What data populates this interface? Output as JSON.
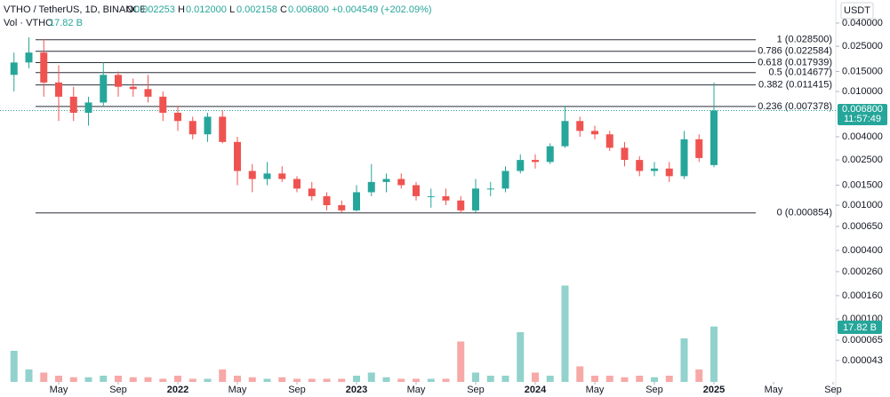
{
  "header": {
    "symbol": "VTHO / TetherUS, 1D, BINANCE",
    "o_label": "O",
    "o": "0.002253",
    "h_label": "H",
    "h": "0.012000",
    "l_label": "L",
    "l": "0.002158",
    "c_label": "C",
    "c": "0.006800",
    "change": "+0.004549 (+202.09%)",
    "vol_label": "Vol · VTHO",
    "vol": "17.82 B",
    "currency": "USDT",
    "last_price": "0.006800",
    "countdown": "11:57:49",
    "last_volume": "17.82 B"
  },
  "chart_data": {
    "type": "candlestick",
    "log_scale": true,
    "up_color": "#26a69a",
    "down_color": "#ef5350",
    "x": [
      "2021-02",
      "2021-03",
      "2021-04",
      "2021-05",
      "2021-06",
      "2021-07",
      "2021-08",
      "2021-09",
      "2021-10",
      "2021-11",
      "2021-12",
      "2022-01",
      "2022-02",
      "2022-03",
      "2022-04",
      "2022-05",
      "2022-06",
      "2022-07",
      "2022-08",
      "2022-09",
      "2022-10",
      "2022-11",
      "2022-12",
      "2023-01",
      "2023-02",
      "2023-03",
      "2023-04",
      "2023-05",
      "2023-06",
      "2023-07",
      "2023-08",
      "2023-09",
      "2023-10",
      "2023-11",
      "2023-12",
      "2024-01",
      "2024-02",
      "2024-03",
      "2024-04",
      "2024-05",
      "2024-06",
      "2024-07",
      "2024-08",
      "2024-09",
      "2024-10",
      "2024-11",
      "2024-12",
      "2025-01"
    ],
    "open": [
      0.014,
      0.018,
      0.022,
      0.012,
      0.009,
      0.0065,
      0.008,
      0.014,
      0.011,
      0.0105,
      0.009,
      0.0065,
      0.0055,
      0.0042,
      0.006,
      0.0036,
      0.002,
      0.0017,
      0.0019,
      0.0017,
      0.0014,
      0.0012,
      0.001,
      0.0009,
      0.0013,
      0.0016,
      0.0017,
      0.0015,
      0.0012,
      0.0012,
      0.0011,
      0.0009,
      0.0014,
      0.0014,
      0.002,
      0.0025,
      0.0024,
      0.0033,
      0.0055,
      0.0045,
      0.0042,
      0.0032,
      0.0025,
      0.002,
      0.0021,
      0.0018,
      0.0038,
      0.002253
    ],
    "high": [
      0.022,
      0.03,
      0.029,
      0.017,
      0.011,
      0.009,
      0.018,
      0.015,
      0.013,
      0.014,
      0.01,
      0.0075,
      0.006,
      0.0065,
      0.0068,
      0.004,
      0.0023,
      0.0024,
      0.0022,
      0.0018,
      0.0016,
      0.0013,
      0.0011,
      0.0015,
      0.0023,
      0.0019,
      0.0019,
      0.0016,
      0.0014,
      0.0014,
      0.0012,
      0.0017,
      0.0016,
      0.0022,
      0.0028,
      0.0028,
      0.0035,
      0.0075,
      0.006,
      0.005,
      0.0045,
      0.0036,
      0.0027,
      0.0024,
      0.0024,
      0.0045,
      0.0042,
      0.012
    ],
    "low": [
      0.01,
      0.016,
      0.009,
      0.0055,
      0.0055,
      0.005,
      0.0075,
      0.009,
      0.009,
      0.008,
      0.0055,
      0.0045,
      0.0038,
      0.0036,
      0.0035,
      0.0015,
      0.0013,
      0.0015,
      0.0016,
      0.0013,
      0.0011,
      0.0009,
      0.00086,
      0.00088,
      0.0012,
      0.0013,
      0.0014,
      0.0011,
      0.00095,
      0.001,
      0.00085,
      0.00086,
      0.0012,
      0.0013,
      0.0019,
      0.0021,
      0.0023,
      0.0032,
      0.004,
      0.0038,
      0.003,
      0.0022,
      0.0018,
      0.0018,
      0.0016,
      0.0017,
      0.0024,
      0.002158
    ],
    "close": [
      0.018,
      0.022,
      0.012,
      0.009,
      0.0065,
      0.008,
      0.014,
      0.011,
      0.0105,
      0.009,
      0.0065,
      0.0055,
      0.0042,
      0.006,
      0.0036,
      0.002,
      0.0017,
      0.0019,
      0.0017,
      0.0014,
      0.0012,
      0.001,
      0.0009,
      0.0013,
      0.0016,
      0.0017,
      0.0015,
      0.0012,
      0.0012,
      0.0011,
      0.0009,
      0.0014,
      0.0014,
      0.002,
      0.0025,
      0.0024,
      0.0033,
      0.0055,
      0.0045,
      0.0042,
      0.0032,
      0.0025,
      0.002,
      0.0021,
      0.0018,
      0.0038,
      0.0026,
      0.0068
    ],
    "volume": [
      10,
      4,
      3,
      2,
      1.5,
      1.5,
      2,
      2,
      1.5,
      1.5,
      1,
      2,
      1,
      1,
      4,
      2,
      1.5,
      1,
      1.5,
      1,
      1,
      1,
      1,
      2,
      3,
      1.5,
      1,
      1,
      1,
      1,
      13,
      3,
      2,
      2,
      16,
      3,
      2,
      31,
      5,
      2,
      2,
      1.5,
      2,
      1.5,
      2,
      14,
      4,
      17.82
    ],
    "ylim": [
      2.79e-05,
      0.0638
    ],
    "yticks": [
      {
        "value": 0.04,
        "label": "0.040000"
      },
      {
        "value": 0.025,
        "label": "0.025000"
      },
      {
        "value": 0.015,
        "label": "0.015000"
      },
      {
        "value": 0.01,
        "label": "0.010000"
      },
      {
        "value": 0.004,
        "label": "0.004000"
      },
      {
        "value": 0.0025,
        "label": "0.002500"
      },
      {
        "value": 0.0015,
        "label": "0.001500"
      },
      {
        "value": 0.001,
        "label": "0.001000"
      },
      {
        "value": 0.00065,
        "label": "0.000650"
      },
      {
        "value": 0.0004,
        "label": "0.000400"
      },
      {
        "value": 0.00026,
        "label": "0.000260"
      },
      {
        "value": 0.00016,
        "label": "0.000160"
      },
      {
        "value": 0.0001,
        "label": "0.000100"
      },
      {
        "value": 6.5e-05,
        "label": "0.000065"
      },
      {
        "value": 4.3e-05,
        "label": "0.000043"
      }
    ],
    "xticks": [
      {
        "value": "2021-05",
        "label": "May"
      },
      {
        "value": "2021-09",
        "label": "Sep"
      },
      {
        "value": "2022-01",
        "label": "2022"
      },
      {
        "value": "2022-05",
        "label": "May"
      },
      {
        "value": "2022-09",
        "label": "Sep"
      },
      {
        "value": "2023-01",
        "label": "2023"
      },
      {
        "value": "2023-05",
        "label": "May"
      },
      {
        "value": "2023-09",
        "label": "Sep"
      },
      {
        "value": "2024-01",
        "label": "2024"
      },
      {
        "value": "2024-05",
        "label": "May"
      },
      {
        "value": "2024-09",
        "label": "Sep"
      },
      {
        "value": "2025-01",
        "label": "2025"
      },
      {
        "value": "2025-05",
        "label": "May"
      },
      {
        "value": "2025-09",
        "label": "Sep"
      }
    ],
    "fib_levels": [
      {
        "value": 0.0285,
        "label": "1 (0.028500)"
      },
      {
        "value": 0.022584,
        "label": "0.786 (0.022584)"
      },
      {
        "value": 0.017939,
        "label": "0.618 (0.017939)"
      },
      {
        "value": 0.014677,
        "label": "0.5 (0.014677)"
      },
      {
        "value": 0.011415,
        "label": "0.382 (0.011415)"
      },
      {
        "value": 0.007378,
        "label": "0.236 (0.007378)"
      },
      {
        "value": 0.000854,
        "label": "0 (0.000854)"
      }
    ],
    "last_close": 0.0068
  }
}
